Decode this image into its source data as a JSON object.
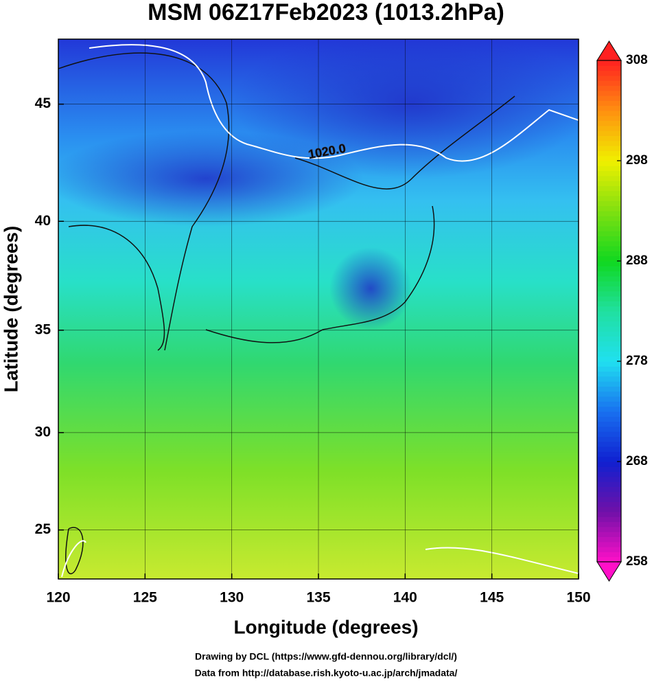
{
  "chart_data": {
    "type": "map",
    "title": "MSM 06Z17Feb2023 (1013.2hPa)",
    "x_label": "Longitude (degrees)",
    "y_label": "Latitude (degrees)",
    "projection": "mercator",
    "xlim": [
      120,
      150
    ],
    "xticks": [
      120,
      125,
      130,
      135,
      140,
      145,
      150
    ],
    "ylim": [
      22.4,
      47.6
    ],
    "yticks": [
      25,
      30,
      35,
      40,
      45
    ],
    "grid": true,
    "annotations": [
      {
        "text": "1020.0",
        "lon": 135.5,
        "lat": 43.0
      }
    ],
    "colorbar": {
      "lim": [
        258,
        308
      ],
      "ticks": [
        258,
        268,
        278,
        288,
        298,
        308
      ],
      "colormap": [
        "#ff10c8",
        "#7010a8",
        "#1020d0",
        "#1870f0",
        "#20e0f0",
        "#20e0a0",
        "#10d820",
        "#80e010",
        "#f0f000",
        "#ff9010",
        "#ff2020"
      ]
    }
  },
  "credits": [
    "Drawing by DCL (https://www.gfd-dennou.org/library/dcl/)",
    "Data from http://database.rish.kyoto-u.ac.jp/arch/jmadata/"
  ]
}
